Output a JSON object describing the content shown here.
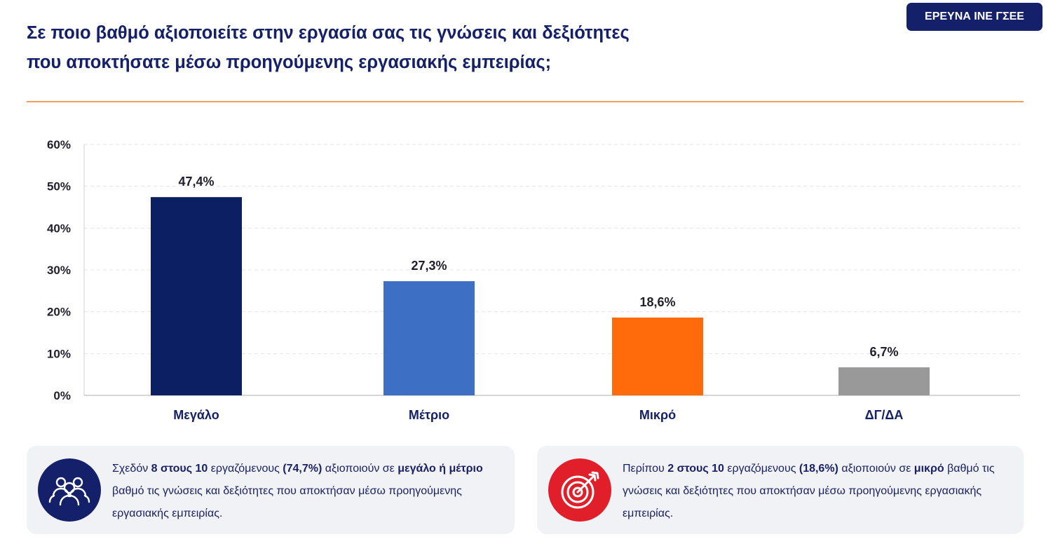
{
  "header": {
    "title_line1": "Σε ποιο βαθμό αξιοποιείτε στην εργασία σας τις γνώσεις και δεξιότητες",
    "title_line2": "που αποκτήσατε μέσω προηγούμενης εργασιακής εμπειρίας;",
    "badge": "ΕΡΕΥΝΑ ΙΝΕ ΓΣΕΕ"
  },
  "colors": {
    "title": "#14206a",
    "divider": "#f5a05a",
    "bar_megalo": "#0d1f63",
    "bar_metrio": "#3d6fc4",
    "bar_mikro": "#ff6a0a",
    "bar_dgda": "#999999"
  },
  "chart_data": {
    "type": "bar",
    "categories": [
      "Μεγάλο",
      "Μέτριο",
      "Μικρό",
      "ΔΓ/ΔΑ"
    ],
    "values": [
      47.4,
      27.3,
      18.6,
      6.7
    ],
    "data_labels": [
      "47,4%",
      "27,3%",
      "18,6%",
      "6,7%"
    ],
    "bar_colors": [
      "#0d1f63",
      "#3d6fc4",
      "#ff6a0a",
      "#999999"
    ],
    "ylim": [
      0,
      60
    ],
    "yticks": [
      0,
      10,
      20,
      30,
      40,
      50,
      60
    ],
    "ytick_labels": [
      "0%",
      "10%",
      "20%",
      "30%",
      "40%",
      "50%",
      "60%"
    ],
    "grid": true,
    "title": "",
    "xlabel": "",
    "ylabel": ""
  },
  "cards": {
    "left": {
      "icon": "people-group-icon",
      "p1": "Σχεδόν ",
      "b1": "8 στους 10",
      "p2": " εργαζόμενους ",
      "b2": "(74,7%)",
      "p3": " αξιοποιούν σε ",
      "b3": "μεγάλο ή μέτριο",
      "p4": " βαθμό τις γνώσεις και δεξιότητες που αποκτήσαν μέσω προηγούμενης εργασιακής εμπειρίας."
    },
    "right": {
      "icon": "target-arrow-icon",
      "p1": "Περίπου ",
      "b1": "2 στους 10",
      "p2": " εργαζόμενους ",
      "b2": "(18,6%)",
      "p3": " αξιοποιούν σε ",
      "b3": "μικρό",
      "p4": " βαθμό τις γνώσεις και δεξιότητες που αποκτήσαν μέσω προηγούμενης εργασιακής εμπειρίας."
    }
  }
}
